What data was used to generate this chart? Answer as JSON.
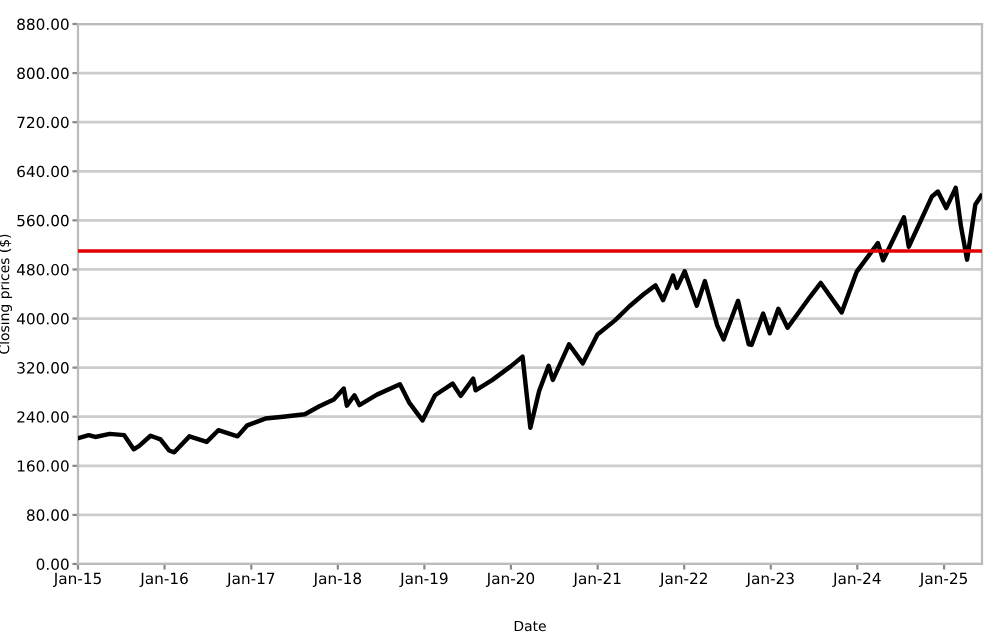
{
  "chart_data": {
    "type": "line",
    "xlabel": "Date",
    "ylabel": "Closing prices ($)",
    "x": [
      "2015-01-02",
      "2015-02-15",
      "2015-03-15",
      "2015-05-15",
      "2015-07-15",
      "2015-08-24",
      "2015-09-15",
      "2015-11-03",
      "2015-12-15",
      "2016-01-20",
      "2016-02-11",
      "2016-04-15",
      "2016-06-27",
      "2016-08-15",
      "2016-11-04",
      "2016-12-15",
      "2017-03-01",
      "2017-05-15",
      "2017-08-15",
      "2017-10-15",
      "2017-12-15",
      "2018-01-26",
      "2018-02-08",
      "2018-03-12",
      "2018-04-02",
      "2018-06-15",
      "2018-09-20",
      "2018-10-29",
      "2018-12-24",
      "2019-02-15",
      "2019-04-30",
      "2019-06-03",
      "2019-07-26",
      "2019-08-05",
      "2019-10-15",
      "2019-12-31",
      "2020-02-19",
      "2020-03-23",
      "2020-04-29",
      "2020-06-08",
      "2020-06-26",
      "2020-09-02",
      "2020-10-30",
      "2020-12-31",
      "2021-03-15",
      "2021-05-15",
      "2021-07-15",
      "2021-09-02",
      "2021-10-04",
      "2021-11-15",
      "2021-12-01",
      "2022-01-03",
      "2022-02-23",
      "2022-03-29",
      "2022-05-20",
      "2022-06-16",
      "2022-08-16",
      "2022-09-30",
      "2022-10-12",
      "2022-11-30",
      "2022-12-28",
      "2023-02-02",
      "2023-03-13",
      "2023-06-15",
      "2023-07-31",
      "2023-10-27",
      "2023-12-29",
      "2024-03-28",
      "2024-04-19",
      "2024-07-16",
      "2024-08-05",
      "2024-11-11",
      "2024-12-06",
      "2025-01-10",
      "2025-02-19",
      "2025-03-13",
      "2025-04-08",
      "2025-05-13",
      "2025-06-06"
    ],
    "series": [
      {
        "color": "#000000",
        "values": [
          205,
          210,
          207,
          212,
          210,
          187,
          192,
          209,
          203,
          185,
          182,
          208,
          199,
          218,
          208,
          226,
          237,
          240,
          244,
          257,
          268,
          286,
          258,
          275,
          259,
          276,
          293,
          263,
          234,
          275,
          294,
          274,
          302,
          283,
          300,
          322,
          338,
          222,
          282,
          323,
          300,
          358,
          327,
          374,
          397,
          420,
          440,
          454,
          430,
          470,
          450,
          477,
          421,
          461,
          389,
          366,
          429,
          358,
          357,
          408,
          376,
          416,
          385,
          435,
          458,
          410,
          476,
          523,
          495,
          565,
          517,
          599,
          607,
          580,
          613,
          551,
          496,
          586,
          600
        ]
      }
    ],
    "ylim": [
      0,
      880
    ],
    "yticks": [
      {
        "value": 0,
        "label": "0.00"
      },
      {
        "value": 80,
        "label": "80.00"
      },
      {
        "value": 160,
        "label": "160.00"
      },
      {
        "value": 240,
        "label": "240.00"
      },
      {
        "value": 320,
        "label": "320.00"
      },
      {
        "value": 400,
        "label": "400.00"
      },
      {
        "value": 480,
        "label": "480.00"
      },
      {
        "value": 560,
        "label": "560.00"
      },
      {
        "value": 640,
        "label": "640.00"
      },
      {
        "value": 720,
        "label": "720.00"
      },
      {
        "value": 800,
        "label": "800.00"
      },
      {
        "value": 880,
        "label": "880.00"
      }
    ],
    "xlim": [
      "2015-01-01",
      "2025-06-10"
    ],
    "xticks": [
      {
        "value": "2015-01-01",
        "label": "Jan-15"
      },
      {
        "value": "2016-01-01",
        "label": "Jan-16"
      },
      {
        "value": "2017-01-01",
        "label": "Jan-17"
      },
      {
        "value": "2018-01-01",
        "label": "Jan-18"
      },
      {
        "value": "2019-01-01",
        "label": "Jan-19"
      },
      {
        "value": "2020-01-01",
        "label": "Jan-20"
      },
      {
        "value": "2021-01-01",
        "label": "Jan-21"
      },
      {
        "value": "2022-01-01",
        "label": "Jan-22"
      },
      {
        "value": "2023-01-01",
        "label": "Jan-23"
      },
      {
        "value": "2024-01-01",
        "label": "Jan-24"
      },
      {
        "value": "2025-01-01",
        "label": "Jan-25"
      }
    ],
    "ref_lines": [
      {
        "axis": "y",
        "value": 510,
        "color": "#e00000"
      }
    ],
    "grid": "y",
    "marker": "none",
    "line_style": "solid"
  }
}
